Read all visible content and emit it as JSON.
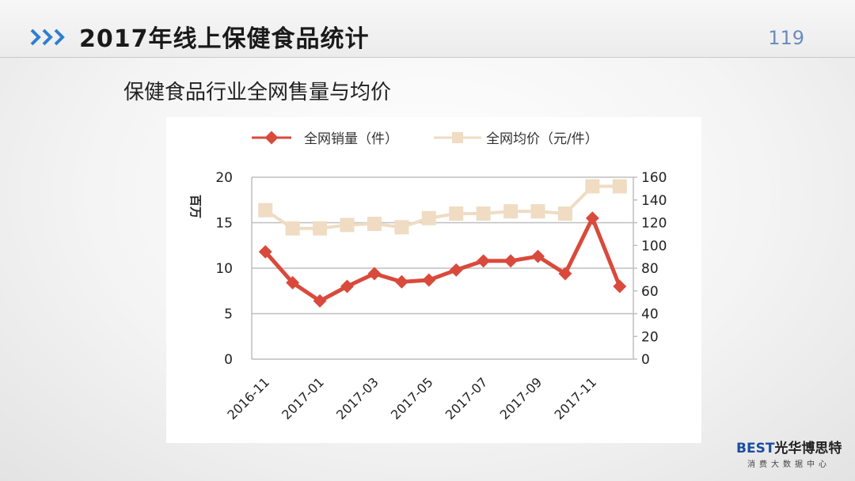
{
  "header": {
    "title": "2017年线上保健食品统计",
    "page_number": "119"
  },
  "subtitle": "保健食品行业全网售量与均价",
  "logo": {
    "brand_mark": "BEST",
    "brand_name": "光华博思特",
    "tagline": "消费大数据中心"
  },
  "colors": {
    "chevron": "#2e7fd0",
    "volume_series": "#d94a3c",
    "price_series": "#efdcc3",
    "grid": "#bfbfbf"
  },
  "chart_data": {
    "type": "line",
    "left_axis_label": "百万",
    "categories": [
      "2016-11",
      "2016-12",
      "2017-01",
      "2017-02",
      "2017-03",
      "2017-04",
      "2017-05",
      "2017-06",
      "2017-07",
      "2017-08",
      "2017-09",
      "2017-10",
      "2017-11",
      "2017-12"
    ],
    "x_tick_labels": [
      "2016-11",
      "2017-01",
      "2017-03",
      "2017-05",
      "2017-07",
      "2017-09",
      "2017-11"
    ],
    "y_left": {
      "ticks": [
        "0",
        "5",
        "10",
        "15",
        "20"
      ],
      "range": [
        0,
        20
      ]
    },
    "y_right": {
      "ticks": [
        "0",
        "20",
        "40",
        "60",
        "80",
        "100",
        "120",
        "140",
        "160"
      ],
      "range": [
        0,
        160
      ]
    },
    "grid": true,
    "legend_position": "top",
    "series": [
      {
        "name": "全网销量（件）",
        "axis": "left",
        "marker": "diamond",
        "values": [
          11.8,
          8.4,
          6.4,
          8.0,
          9.4,
          8.5,
          8.7,
          9.8,
          10.8,
          10.8,
          11.3,
          9.4,
          15.5,
          8.0
        ]
      },
      {
        "name": "全网均价（元/件）",
        "axis": "right",
        "marker": "square",
        "values": [
          131,
          115,
          115,
          118,
          119,
          116,
          124,
          128,
          128,
          130,
          130,
          128,
          152,
          152
        ]
      }
    ]
  }
}
